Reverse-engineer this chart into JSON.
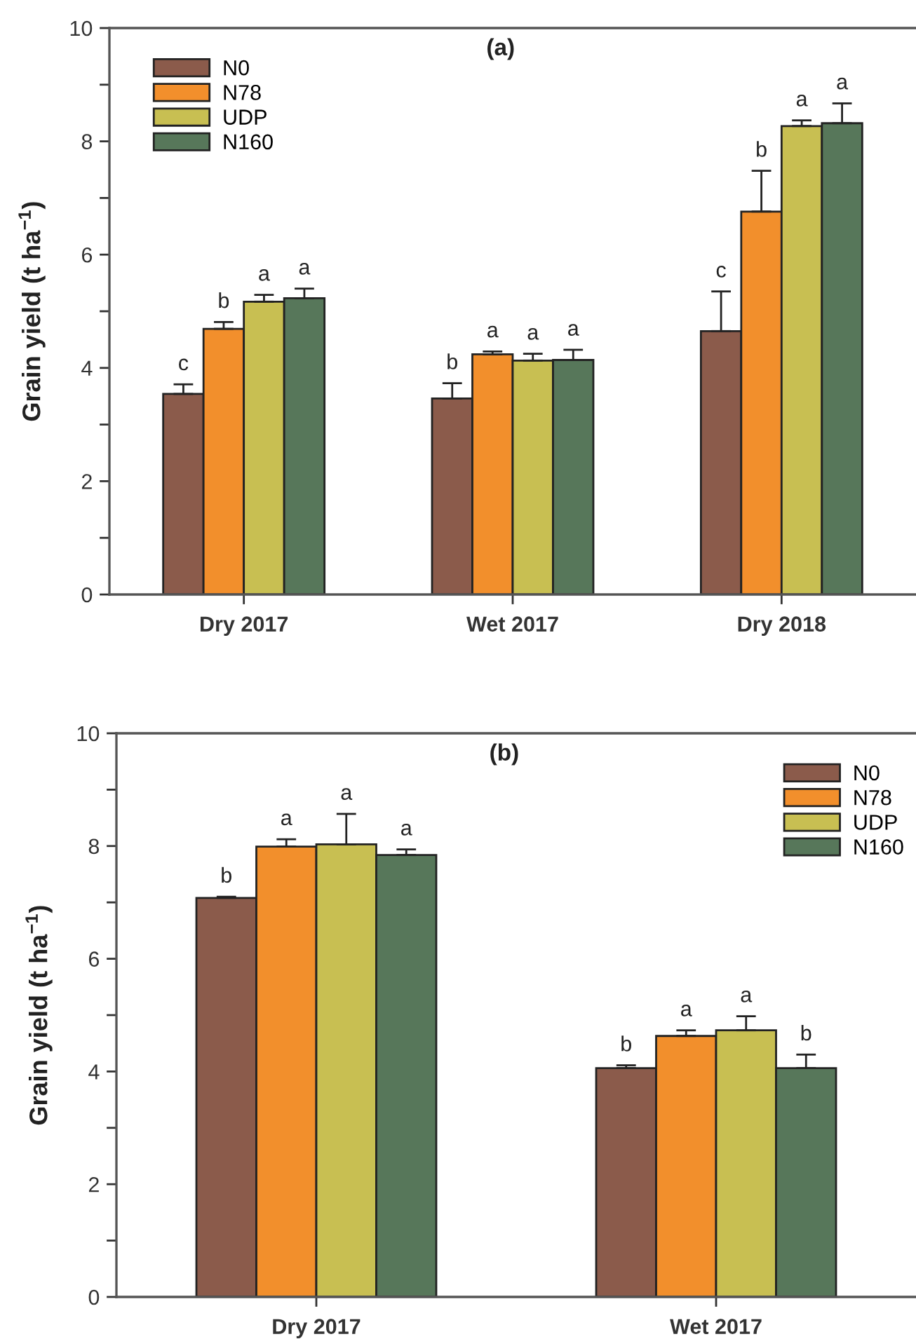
{
  "chart_data": [
    {
      "type": "bar",
      "title": "(a)",
      "ylabel": "Grain yield (t ha$^{−1}$)",
      "categories": [
        "Dry 2017",
        "Wet 2017",
        "Dry 2018"
      ],
      "series": [
        {
          "name": "N0",
          "color": "#8b5b4b",
          "values": [
            3.54,
            3.46,
            4.65
          ],
          "errors": [
            [
              3.54,
              3.71
            ],
            [
              3.46,
              3.73
            ],
            [
              4.65,
              5.35
            ]
          ],
          "value_labels": [
            "c",
            "b",
            "c"
          ]
        },
        {
          "name": "N78",
          "color": "#f28f2c",
          "values": [
            4.69,
            4.24,
            6.76
          ],
          "errors": [
            [
              4.69,
              4.81
            ],
            [
              4.24,
              4.29
            ],
            [
              6.76,
              7.48
            ]
          ],
          "value_labels": [
            "b",
            "a",
            "b"
          ]
        },
        {
          "name": "UDP",
          "color": "#c8bf52",
          "values": [
            5.17,
            4.13,
            8.27
          ],
          "errors": [
            [
              5.17,
              5.29
            ],
            [
              4.13,
              4.25
            ],
            [
              8.27,
              8.37
            ]
          ],
          "value_labels": [
            "a",
            "a",
            "a"
          ]
        },
        {
          "name": "N160",
          "color": "#57775a",
          "values": [
            5.23,
            4.14,
            8.32
          ],
          "errors": [
            [
              5.23,
              5.4
            ],
            [
              4.14,
              4.32
            ],
            [
              8.32,
              8.67
            ]
          ],
          "value_labels": [
            "a",
            "a",
            "a"
          ]
        }
      ],
      "ylim": [
        0,
        10
      ],
      "yticks": [
        0,
        {
          "value": 1,
          "label": null
        },
        2,
        {
          "value": 3,
          "label": null
        },
        4,
        {
          "value": 5,
          "label": null
        },
        6,
        {
          "value": 7,
          "label": null
        },
        8,
        {
          "value": 9,
          "label": null
        },
        10
      ],
      "legend": "top left"
    },
    {
      "type": "bar",
      "title": "(b)",
      "ylabel": "Grain yield (t ha$^{−1}$)",
      "categories": [
        "Dry 2017",
        "Wet 2017"
      ],
      "series": [
        {
          "name": "N0",
          "color": "#8b5b4b",
          "values": [
            7.08,
            4.06
          ],
          "errors": [
            [
              7.08,
              7.1
            ],
            [
              4.06,
              4.11
            ]
          ],
          "value_labels": [
            "b",
            "b"
          ]
        },
        {
          "name": "N78",
          "color": "#f28f2c",
          "values": [
            7.99,
            4.63
          ],
          "errors": [
            [
              7.99,
              8.12
            ],
            [
              4.63,
              4.73
            ]
          ],
          "value_labels": [
            "a",
            "a"
          ]
        },
        {
          "name": "UDP",
          "color": "#c8bf52",
          "values": [
            8.03,
            4.73
          ],
          "errors": [
            [
              8.03,
              8.57
            ],
            [
              4.73,
              4.98
            ]
          ],
          "value_labels": [
            "a",
            "a"
          ]
        },
        {
          "name": "N160",
          "color": "#57775a",
          "values": [
            7.84,
            4.06
          ],
          "errors": [
            [
              7.84,
              7.94
            ],
            [
              4.06,
              4.3
            ]
          ],
          "value_labels": [
            "a",
            "b"
          ]
        }
      ],
      "ylim": [
        0,
        10
      ],
      "yticks": [
        0,
        {
          "value": 1,
          "label": null
        },
        2,
        {
          "value": 3,
          "label": null
        },
        4,
        {
          "value": 5,
          "label": null
        },
        6,
        {
          "value": 7,
          "label": null
        },
        8,
        {
          "value": 9,
          "label": null
        },
        10
      ],
      "legend": "top right"
    }
  ]
}
